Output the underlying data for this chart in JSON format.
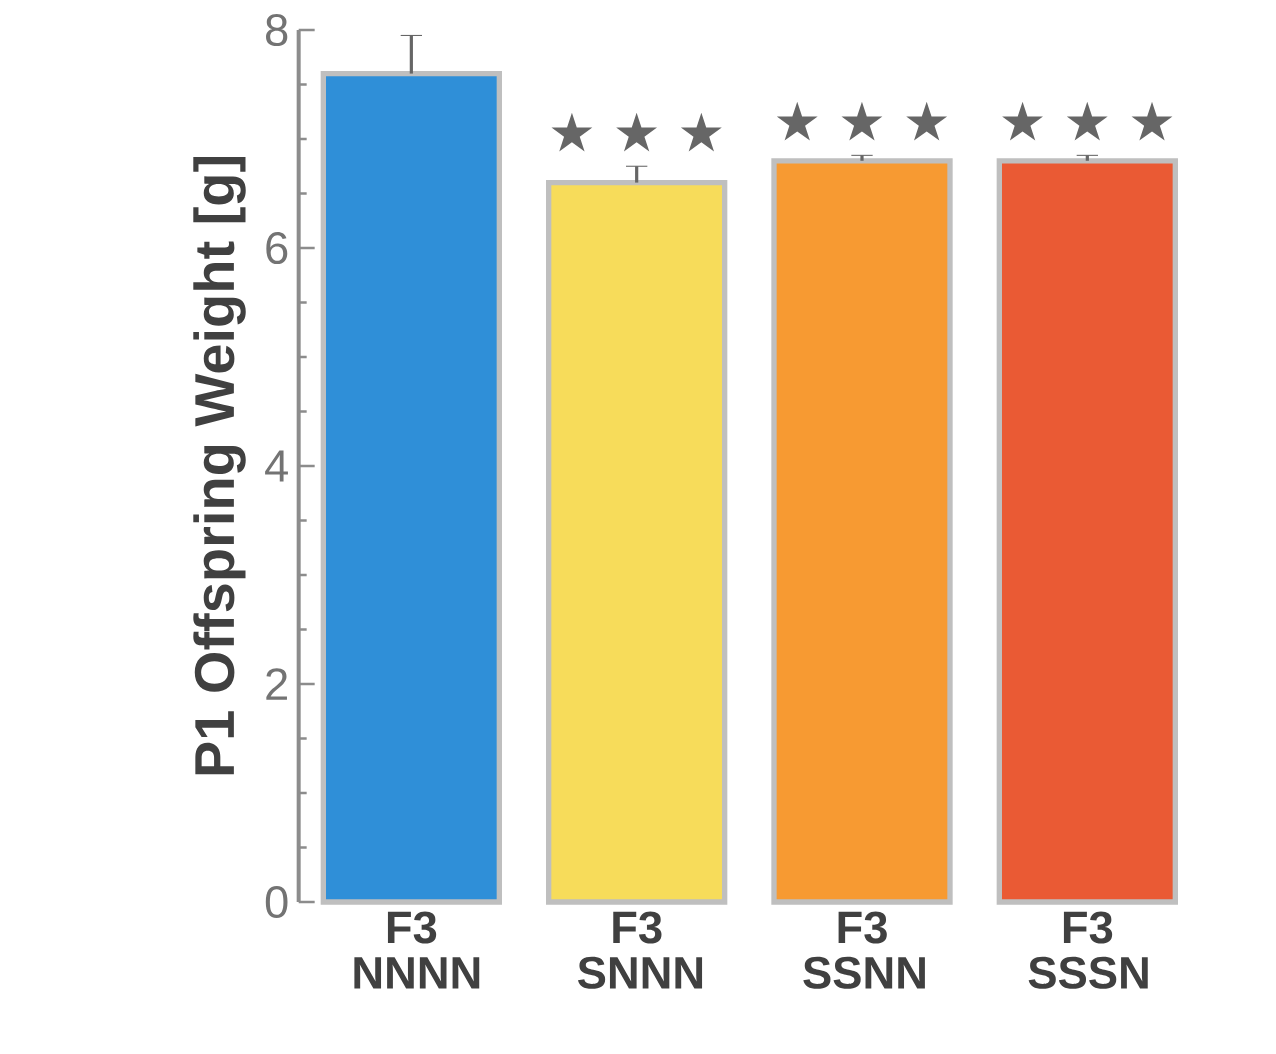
{
  "chart_data": {
    "type": "bar",
    "ylabel": "P1 Offspring Weight [g]",
    "categories": [
      "F3 NNNN",
      "F3 SNNN",
      "F3 SSNN",
      "F3 SSSN"
    ],
    "values": [
      7.6,
      6.6,
      6.8,
      6.8
    ],
    "errors": [
      0.35,
      0.15,
      0.05,
      0.05
    ],
    "colors": [
      "#2f8fd8",
      "#f7dc5a",
      "#f79a32",
      "#ea5a34"
    ],
    "ylim": [
      0,
      8
    ],
    "yticks": [
      0,
      2,
      4,
      6,
      8
    ],
    "annotations": [
      "★ ★ ★",
      "★ ★ ★",
      "★ ★ ★"
    ]
  }
}
